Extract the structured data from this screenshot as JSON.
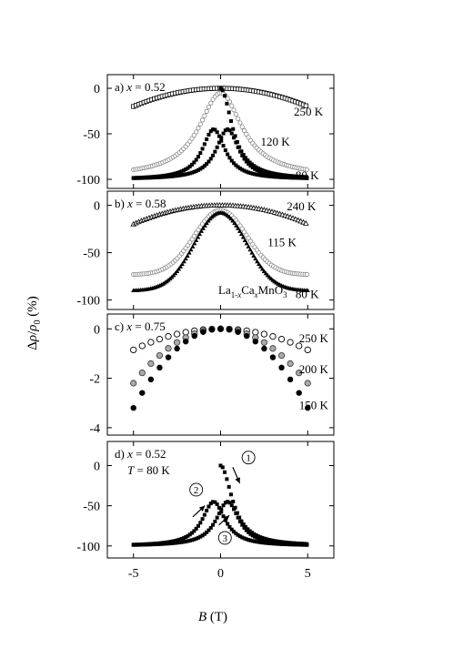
{
  "figure": {
    "ylabel_html": "Δρ/ρ₀ (%)",
    "xlabel": "B (T)",
    "xticks": [
      -5,
      0,
      5
    ],
    "xlim": [
      -6.5,
      6.5
    ]
  },
  "chart_data": [
    {
      "type": "scatter",
      "panel_label": "a)",
      "x_eq": "x = 0.52",
      "ylim": [
        -110,
        15
      ],
      "yticks": [
        0,
        -50,
        -100
      ],
      "series": [
        {
          "name": "250 K",
          "marker": "open-square",
          "curve": "parabola",
          "peak": 0,
          "edge": -20,
          "xmin": -5,
          "xmax": 5,
          "step": 0.15,
          "label_pos": [
            4.2,
            -30
          ]
        },
        {
          "name": "120 K",
          "marker": "open-circle-gray",
          "curve": "lorentz",
          "peak": -5,
          "floor": -97,
          "hw": 1.5,
          "shift": 0,
          "xmin": -5,
          "xmax": 5,
          "step": 0.12,
          "label_pos": [
            2.3,
            -63
          ]
        },
        {
          "name": "80 K",
          "marker": "filled-square",
          "curve": "hysteresis",
          "peak": -45,
          "floor": -100,
          "hw": 0.8,
          "xmin": -5,
          "xmax": 5,
          "step": 0.12,
          "label_pos": [
            4.3,
            -100
          ]
        }
      ]
    },
    {
      "type": "scatter",
      "panel_label": "b)",
      "x_eq": "x = 0.58",
      "ylim": [
        -110,
        15
      ],
      "yticks": [
        0,
        -50,
        -100
      ],
      "formula": "La1-xCaxMnO3",
      "series": [
        {
          "name": "240 K",
          "marker": "open-triangle",
          "curve": "parabola",
          "peak": 0,
          "edge": -20,
          "xmin": -5,
          "xmax": 5,
          "step": 0.15,
          "label_pos": [
            3.8,
            -5
          ]
        },
        {
          "name": "115 K",
          "marker": "open-circle-gray",
          "curve": "gauss",
          "peak": -5,
          "edge": -73,
          "xmin": -5,
          "xmax": 5,
          "step": 0.12,
          "label_pos": [
            2.7,
            -43
          ]
        },
        {
          "name": "80 K",
          "marker": "filled-triangle",
          "curve": "gauss",
          "peak": -8,
          "edge": -90,
          "xmin": -5,
          "xmax": 5,
          "step": 0.1,
          "label_pos": [
            4.3,
            -98
          ]
        }
      ]
    },
    {
      "type": "scatter",
      "panel_label": "c)",
      "x_eq": "x = 0.75",
      "ylim": [
        -4.3,
        0.6
      ],
      "yticks": [
        0,
        -2,
        -4
      ],
      "series": [
        {
          "name": "250 K",
          "marker": "open-circle",
          "curve": "parabola",
          "peak": 0,
          "edge": -0.85,
          "xmin": -5,
          "xmax": 5,
          "step": 0.5,
          "label_pos": [
            4.5,
            -0.55
          ]
        },
        {
          "name": "200 K",
          "marker": "gray-circle",
          "curve": "parabola",
          "peak": 0,
          "edge": -2.2,
          "xmin": -5,
          "xmax": 5,
          "step": 0.5,
          "label_pos": [
            4.5,
            -1.8
          ]
        },
        {
          "name": "150 K",
          "marker": "filled-circle",
          "curve": "parabola",
          "peak": 0,
          "edge": -3.2,
          "xmin": -5,
          "xmax": 5,
          "step": 0.5,
          "label_pos": [
            4.5,
            -3.25
          ]
        }
      ]
    },
    {
      "type": "scatter",
      "panel_label": "d)",
      "x_eq": "x = 0.52",
      "t_eq": "T = 80 K",
      "ylim": [
        -115,
        30
      ],
      "yticks": [
        0,
        -50,
        -100
      ],
      "annotations": [
        "1",
        "2",
        "3"
      ],
      "series": [
        {
          "name": "1",
          "marker": "filled-square",
          "curve": "decay",
          "peak": 0,
          "floor": -100,
          "hw": 0.8,
          "xmin": 0,
          "xmax": 5,
          "step": 0.12
        },
        {
          "name": "2",
          "marker": "filled-square",
          "curve": "lorentz",
          "peak": -45,
          "floor": -100,
          "hw": 0.8,
          "shift": 0.4,
          "xmin": -5,
          "xmax": 5,
          "step": 0.12
        },
        {
          "name": "3",
          "marker": "filled-square",
          "curve": "lorentz",
          "peak": -45,
          "floor": -100,
          "hw": 0.8,
          "shift": -0.4,
          "xmin": -5,
          "xmax": 5,
          "step": 0.12
        }
      ]
    }
  ]
}
